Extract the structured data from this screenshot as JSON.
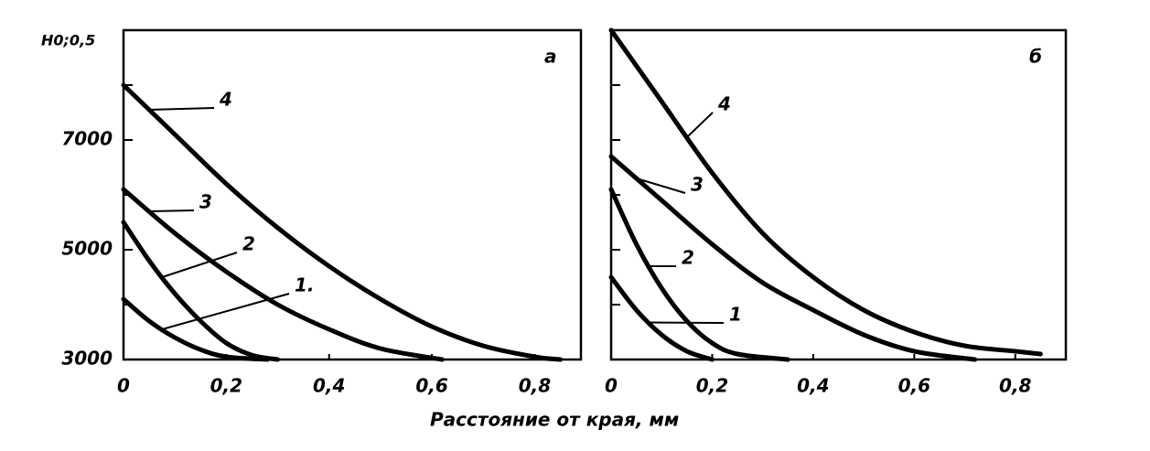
{
  "chart_data": [
    {
      "type": "line",
      "title": "а",
      "ylabel": "H0;0,5",
      "xlim": [
        0,
        0.89
      ],
      "ylim": [
        3000,
        9000
      ],
      "xticks": [
        0,
        {
          "value": 0.2,
          "label": "0,2"
        },
        {
          "value": 0.4,
          "label": "0,4"
        },
        {
          "value": 0.6,
          "label": "0,6"
        },
        {
          "value": 0.8,
          "label": "0,8"
        }
      ],
      "yticks": [
        3000,
        5000,
        7000
      ],
      "yminorticks": [
        4000,
        6000,
        8000
      ],
      "series": [
        {
          "name": "4",
          "color": "#000000",
          "x": [
            0,
            0.1,
            0.2,
            0.3,
            0.4,
            0.5,
            0.6,
            0.7,
            0.8,
            0.85
          ],
          "values": [
            8000,
            7100,
            6200,
            5400,
            4700,
            4100,
            3600,
            3250,
            3050,
            3000
          ]
        },
        {
          "name": "3",
          "color": "#000000",
          "x": [
            0,
            0.1,
            0.2,
            0.3,
            0.4,
            0.5,
            0.62
          ],
          "values": [
            6100,
            5300,
            4600,
            4000,
            3550,
            3200,
            3000
          ]
        },
        {
          "name": "2",
          "color": "#000000",
          "x": [
            0,
            0.05,
            0.1,
            0.15,
            0.2,
            0.25,
            0.3
          ],
          "values": [
            5500,
            4800,
            4200,
            3700,
            3300,
            3080,
            3000
          ]
        },
        {
          "name": "1.",
          "color": "#000000",
          "x": [
            0,
            0.05,
            0.1,
            0.15,
            0.2,
            0.28
          ],
          "values": [
            4100,
            3700,
            3400,
            3180,
            3050,
            3000
          ]
        }
      ]
    },
    {
      "type": "line",
      "title": "б",
      "xlim": [
        0,
        0.9
      ],
      "ylim": [
        3000,
        9000
      ],
      "xticks": [
        0,
        {
          "value": 0.2,
          "label": "0,2"
        },
        {
          "value": 0.4,
          "label": "0,4"
        },
        {
          "value": 0.6,
          "label": "0,6"
        },
        {
          "value": 0.8,
          "label": "0,8"
        }
      ],
      "yminorticks": [
        4000,
        5000,
        6000,
        7000,
        8000
      ],
      "series": [
        {
          "name": "4",
          "color": "#000000",
          "x": [
            0,
            0.1,
            0.2,
            0.3,
            0.4,
            0.5,
            0.6,
            0.7,
            0.8,
            0.85
          ],
          "values": [
            9000,
            7700,
            6400,
            5300,
            4500,
            3900,
            3500,
            3250,
            3150,
            3100
          ]
        },
        {
          "name": "3",
          "color": "#000000",
          "x": [
            0,
            0.1,
            0.2,
            0.3,
            0.4,
            0.5,
            0.6,
            0.72
          ],
          "values": [
            6700,
            5900,
            5100,
            4400,
            3900,
            3450,
            3150,
            3000
          ]
        },
        {
          "name": "2",
          "color": "#000000",
          "x": [
            0,
            0.05,
            0.1,
            0.15,
            0.2,
            0.25,
            0.35
          ],
          "values": [
            6100,
            5100,
            4300,
            3700,
            3300,
            3100,
            3000
          ]
        },
        {
          "name": "1",
          "color": "#000000",
          "x": [
            0,
            0.05,
            0.1,
            0.15,
            0.2
          ],
          "values": [
            4500,
            3900,
            3450,
            3150,
            3000
          ]
        }
      ]
    }
  ],
  "xlabel": "Расстояние от края, мм"
}
